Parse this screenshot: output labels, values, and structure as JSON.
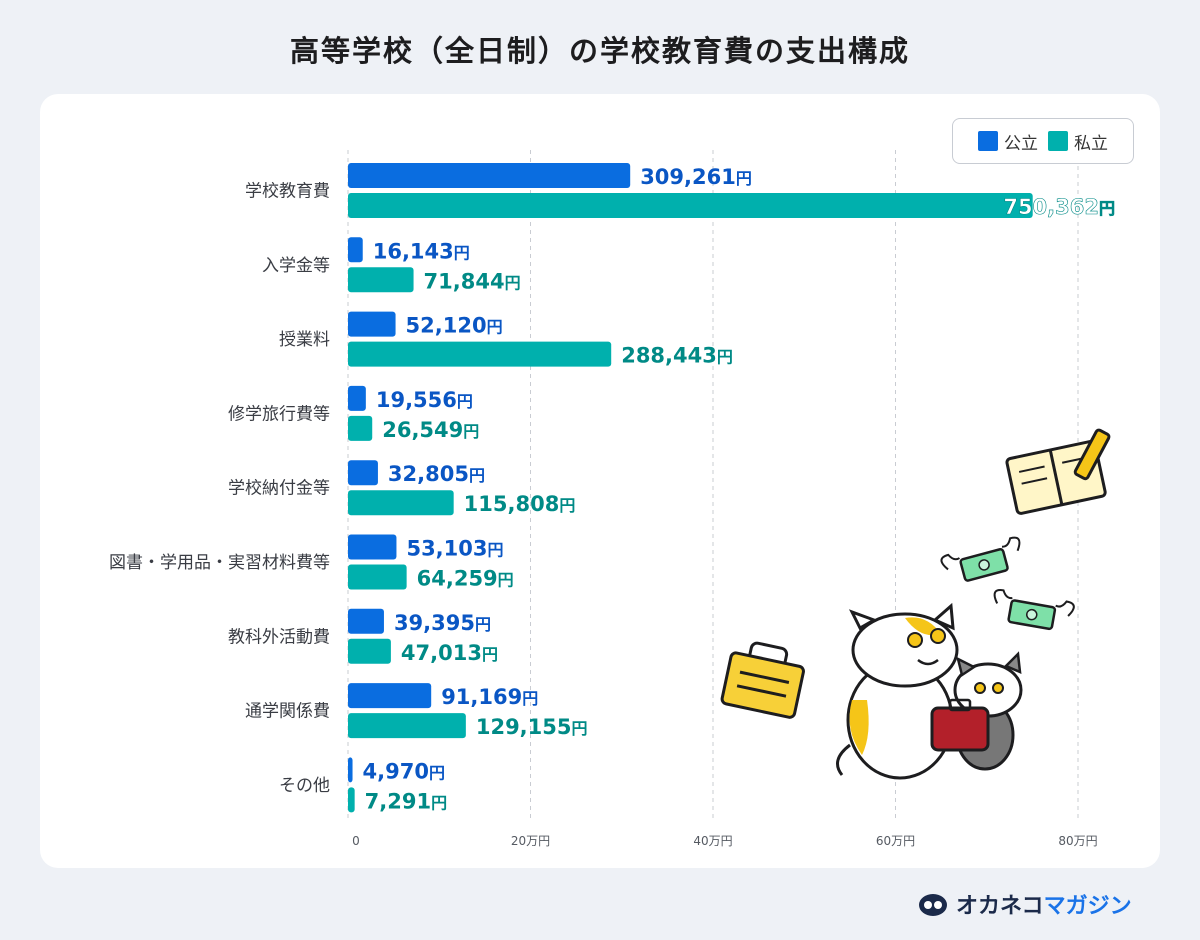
{
  "title": "高等学校（全日制）の学校教育費の支出構成",
  "legend": {
    "public_label": "公立",
    "private_label": "私立"
  },
  "colors": {
    "public": "#0a6de0",
    "private": "#00b0ad",
    "public_text": "#0a56c4",
    "private_text": "#008a86"
  },
  "chart_data": {
    "type": "bar",
    "orientation": "horizontal",
    "categories": [
      "学校教育費",
      "入学金等",
      "授業料",
      "修学旅行費等",
      "学校納付金等",
      "図書・学用品・実習材料費等",
      "教科外活動費",
      "通学関係費",
      "その他"
    ],
    "series": [
      {
        "name": "公立",
        "values": [
          309261,
          16143,
          52120,
          19556,
          32805,
          53103,
          39395,
          91169,
          4970
        ]
      },
      {
        "name": "私立",
        "values": [
          750362,
          71844,
          288443,
          26549,
          115808,
          64259,
          47013,
          129155,
          7291
        ]
      }
    ],
    "value_labels": {
      "public": [
        "309,261",
        "16,143",
        "52,120",
        "19,556",
        "32,805",
        "53,103",
        "39,395",
        "91,169",
        "4,970"
      ],
      "private": [
        "750,362",
        "71,844",
        "288,443",
        "26,549",
        "115,808",
        "64,259",
        "47,013",
        "129,155",
        "7,291"
      ]
    },
    "unit": "円",
    "xlim": [
      0,
      800000
    ],
    "xticks": [
      0,
      200000,
      400000,
      600000,
      800000
    ],
    "xtick_labels": [
      "0",
      "20万円",
      "40万円",
      "60万円",
      "80万円"
    ],
    "grid": true,
    "legend_position": "top-right"
  },
  "brand": {
    "name_part1": "オカネコ",
    "name_part2": "マガジン",
    "logo": "okaneko-logo-icon"
  },
  "illustration": {
    "icons": [
      "notebook-pencil-icon",
      "flying-money-icon",
      "briefcase-icon",
      "cats-with-bag-icon"
    ]
  }
}
